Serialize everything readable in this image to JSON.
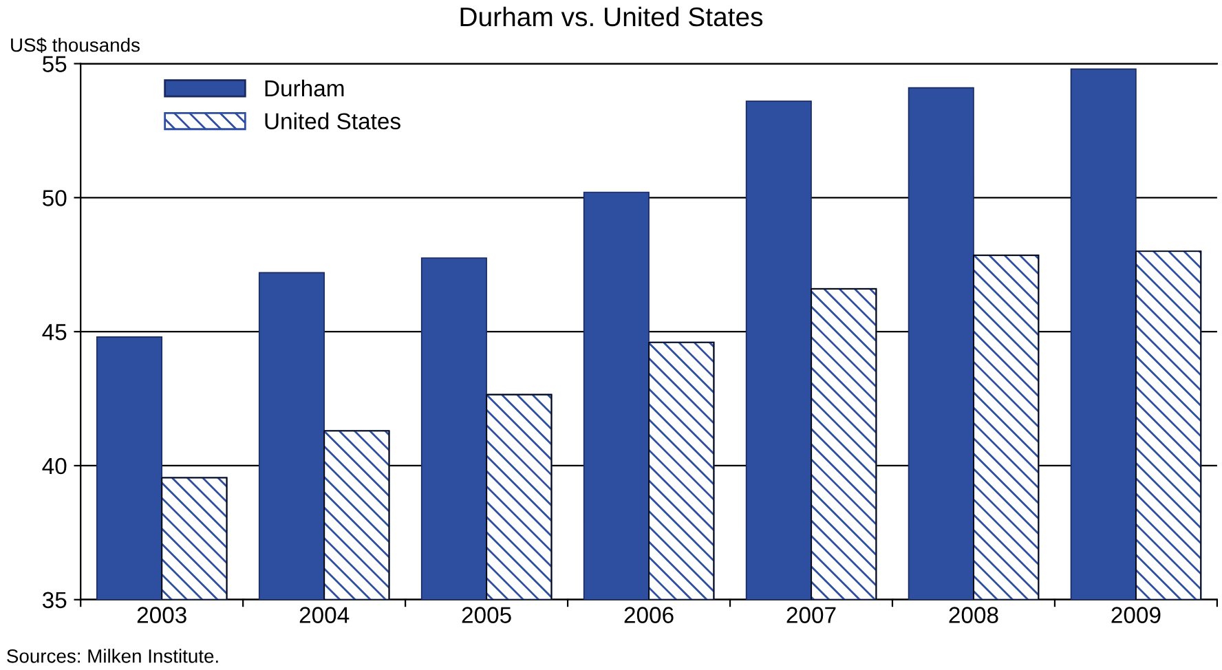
{
  "chart_data": {
    "type": "bar",
    "title": "Durham vs. United States",
    "ylabel": "US$ thousands",
    "categories": [
      "2003",
      "2004",
      "2005",
      "2006",
      "2007",
      "2008",
      "2009"
    ],
    "series": [
      {
        "name": "Durham",
        "color": "#2e4ea0",
        "values": [
          44.8,
          47.2,
          47.75,
          50.2,
          53.6,
          54.1,
          54.8
        ]
      },
      {
        "name": "United States",
        "color": "#2e4ea0",
        "values": [
          39.55,
          41.3,
          42.65,
          44.6,
          46.6,
          47.85,
          48.0
        ]
      }
    ],
    "ylim": [
      35,
      55
    ],
    "yticks": [
      35,
      40,
      45,
      50,
      55
    ],
    "grid": "y",
    "legend": "top left",
    "annotations": [
      "Sources: Milken Institute."
    ]
  }
}
